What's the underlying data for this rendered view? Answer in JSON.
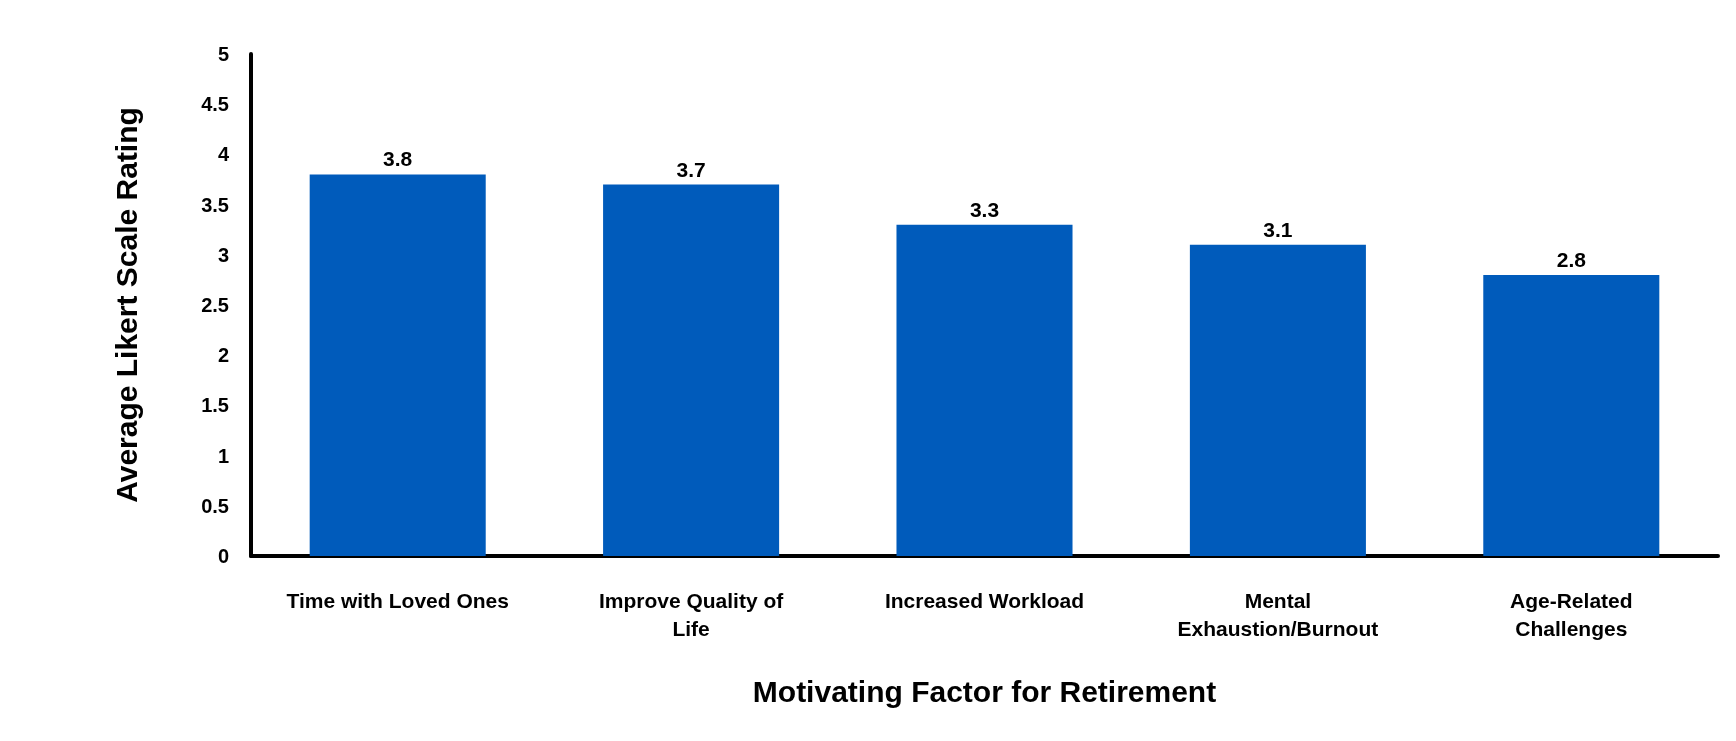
{
  "chart_data": {
    "type": "bar",
    "xlabel": "Motivating Factor for Retirement",
    "ylabel": "Average Likert Scale Rating",
    "categories": [
      "Time with Loved Ones",
      "Improve Quality of Life",
      "Increased Workload",
      "Mental Exhaustion/Burnout",
      "Age-Related Challenges"
    ],
    "values": [
      3.8,
      3.7,
      3.3,
      3.1,
      2.8
    ],
    "color": "#005bbb",
    "ylim": [
      0,
      5
    ],
    "yticks": [
      0,
      0.5,
      1,
      1.5,
      2,
      2.5,
      3,
      3.5,
      4,
      4.5,
      5
    ],
    "grid": false,
    "data_labels": true
  }
}
